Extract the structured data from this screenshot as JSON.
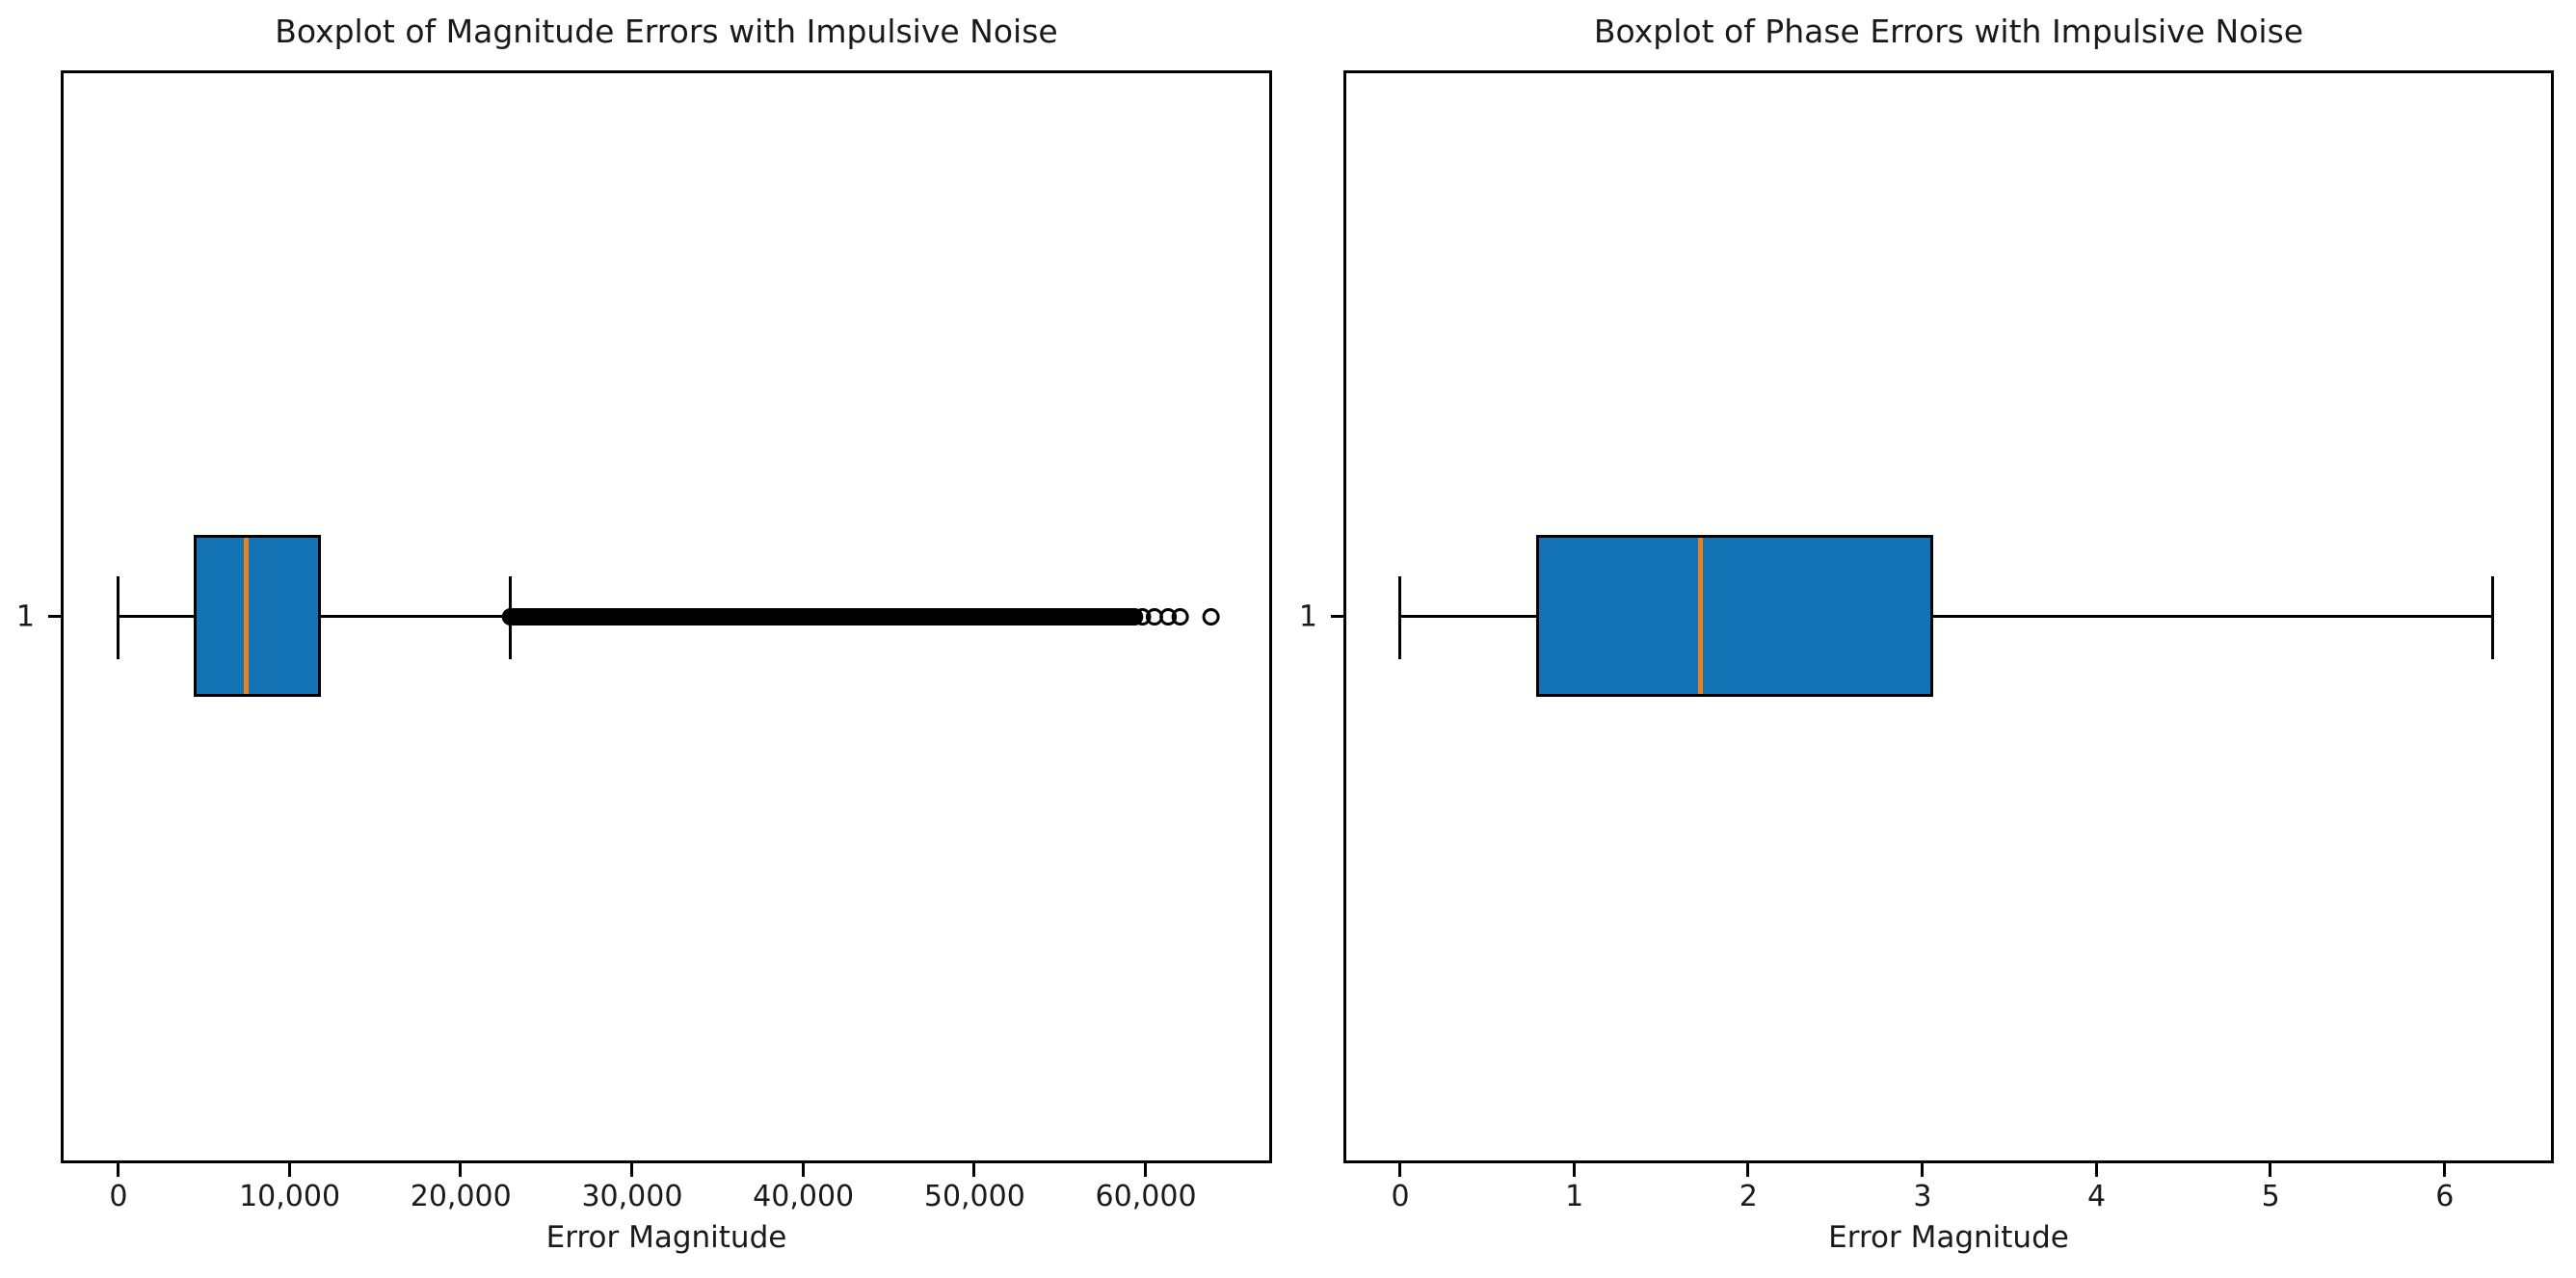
{
  "figure": {
    "background": "#ffffff"
  },
  "colors": {
    "box_fill": "#1473b4",
    "box_edge": "#000000",
    "median": "#e8821e",
    "whisker": "#000000",
    "outlier_stroke": "#000000",
    "text": "#1a1a1a"
  },
  "chart_data": [
    {
      "type": "boxplot",
      "orientation": "horizontal",
      "title": "Boxplot of Magnitude Errors with Impulsive Noise",
      "xlabel": "Error Magnitude",
      "ytick_label": "1",
      "y_position": 1,
      "xlim": [
        -3200,
        67200
      ],
      "grid": false,
      "xticks": [
        {
          "value": 0,
          "label": "0"
        },
        {
          "value": 10000,
          "label": "10,000"
        },
        {
          "value": 20000,
          "label": "20,000"
        },
        {
          "value": 30000,
          "label": "30,000"
        },
        {
          "value": 40000,
          "label": "40,000"
        },
        {
          "value": 50000,
          "label": "50,000"
        },
        {
          "value": 60000,
          "label": "60,000"
        }
      ],
      "box": {
        "whisker_low": 0,
        "q1": 4400,
        "median": 7500,
        "q3": 11800,
        "whisker_high": 22900
      },
      "outliers": {
        "dense_range": [
          22900,
          59400
        ],
        "semi_dense_points": [
          59800,
          60500,
          61300,
          62000
        ],
        "isolated_points": [
          63800
        ]
      }
    },
    {
      "type": "boxplot",
      "orientation": "horizontal",
      "title": "Boxplot of Phase Errors with Impulsive Noise",
      "xlabel": "Error Magnitude",
      "ytick_label": "1",
      "y_position": 1,
      "xlim": [
        -0.31,
        6.61
      ],
      "grid": false,
      "xticks": [
        {
          "value": 0,
          "label": "0"
        },
        {
          "value": 1,
          "label": "1"
        },
        {
          "value": 2,
          "label": "2"
        },
        {
          "value": 3,
          "label": "3"
        },
        {
          "value": 4,
          "label": "4"
        },
        {
          "value": 5,
          "label": "5"
        },
        {
          "value": 6,
          "label": "6"
        }
      ],
      "box": {
        "whisker_low": 0,
        "q1": 0.78,
        "median": 1.73,
        "q3": 3.06,
        "whisker_high": 6.28
      },
      "outliers": null
    }
  ]
}
